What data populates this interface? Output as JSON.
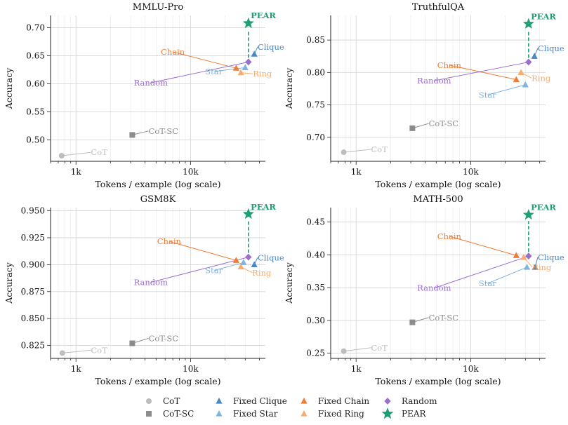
{
  "colors": {
    "CoT": "#bdbdbd",
    "CoT-SC": "#8c8c8c",
    "Fixed Clique": "#4a86c8",
    "Fixed Star": "#7db3e0",
    "Fixed Chain": "#ef7d35",
    "Fixed Ring": "#f6ad72",
    "Random": "#9b6fcc",
    "PEAR": "#1f9e74"
  },
  "chart_data": [
    {
      "type": "scatter",
      "title": "MMLU-Pro",
      "xlabel": "Tokens / example (log scale)",
      "ylabel": "Accuracy",
      "xscale": "log",
      "xlim": [
        600,
        45000
      ],
      "ylim": [
        0.462,
        0.722
      ],
      "yticks": [
        0.5,
        0.55,
        0.6,
        0.65,
        0.7
      ],
      "ytick_labels": [
        "0.50",
        "0.55",
        "0.60",
        "0.65",
        "0.70"
      ],
      "xticks": [
        1000,
        10000
      ],
      "xtick_labels": [
        "1k",
        "10k"
      ],
      "grid": true,
      "points": [
        {
          "name": "CoT",
          "x": 750,
          "y": 0.472,
          "marker": "circle",
          "label": "CoT",
          "lx": 1350,
          "ly": 0.473
        },
        {
          "name": "CoT-SC",
          "x": 3100,
          "y": 0.509,
          "marker": "square",
          "label": "CoT-SC",
          "lx": 4300,
          "ly": 0.511
        },
        {
          "name": "Fixed Chain",
          "x": 25000,
          "y": 0.628,
          "marker": "triangle",
          "label": "Chain",
          "lx": 7000,
          "ly": 0.652
        },
        {
          "name": "Fixed Ring",
          "x": 27500,
          "y": 0.62,
          "marker": "triangle",
          "label": "Ring",
          "lx": 35000,
          "ly": 0.613
        },
        {
          "name": "Fixed Star",
          "x": 30000,
          "y": 0.629,
          "marker": "triangle",
          "label": "Star",
          "lx": 16000,
          "ly": 0.617
        },
        {
          "name": "Random",
          "x": 32000,
          "y": 0.639,
          "marker": "diamond",
          "label": "Random",
          "lx": 4500,
          "ly": 0.597
        },
        {
          "name": "Fixed Clique",
          "x": 36000,
          "y": 0.653,
          "marker": "triangle",
          "label": "Clique",
          "lx": 38500,
          "ly": 0.661
        },
        {
          "name": "PEAR",
          "x": 32000,
          "y": 0.708,
          "marker": "star",
          "label": "PEAR",
          "lx": 33500,
          "ly": 0.717
        }
      ],
      "pear_from_y": 0.639
    },
    {
      "type": "scatter",
      "title": "TruthfulQA",
      "xlabel": "Tokens / example (log scale)",
      "ylabel": "Accuracy",
      "xscale": "log",
      "xlim": [
        600,
        45000
      ],
      "ylim": [
        0.663,
        0.888
      ],
      "yticks": [
        0.7,
        0.75,
        0.8,
        0.85
      ],
      "ytick_labels": [
        "0.70",
        "0.75",
        "0.80",
        "0.85"
      ],
      "xticks": [
        1000,
        10000
      ],
      "xtick_labels": [
        "1k",
        "10k"
      ],
      "grid": true,
      "points": [
        {
          "name": "CoT",
          "x": 780,
          "y": 0.677,
          "marker": "circle",
          "label": "CoT",
          "lx": 1350,
          "ly": 0.677
        },
        {
          "name": "CoT-SC",
          "x": 3100,
          "y": 0.714,
          "marker": "square",
          "label": "CoT-SC",
          "lx": 4300,
          "ly": 0.717
        },
        {
          "name": "Fixed Chain",
          "x": 25000,
          "y": 0.789,
          "marker": "triangle",
          "label": "Chain",
          "lx": 6500,
          "ly": 0.807
        },
        {
          "name": "Fixed Ring",
          "x": 27500,
          "y": 0.8,
          "marker": "triangle",
          "label": "Ring",
          "lx": 34000,
          "ly": 0.787
        },
        {
          "name": "Fixed Star",
          "x": 30000,
          "y": 0.781,
          "marker": "triangle",
          "label": "Star",
          "lx": 14000,
          "ly": 0.761
        },
        {
          "name": "Random",
          "x": 32000,
          "y": 0.816,
          "marker": "diamond",
          "label": "Random",
          "lx": 4800,
          "ly": 0.783
        },
        {
          "name": "Fixed Clique",
          "x": 36000,
          "y": 0.825,
          "marker": "triangle",
          "label": "Clique",
          "lx": 38500,
          "ly": 0.833
        },
        {
          "name": "PEAR",
          "x": 32000,
          "y": 0.875,
          "marker": "star",
          "label": "PEAR",
          "lx": 33500,
          "ly": 0.882
        }
      ],
      "pear_from_y": 0.816
    },
    {
      "type": "scatter",
      "title": "GSM8K",
      "xlabel": "Tokens / example (log scale)",
      "ylabel": "Accuracy",
      "xscale": "log",
      "xlim": [
        600,
        45000
      ],
      "ylim": [
        0.813,
        0.953
      ],
      "yticks": [
        0.825,
        0.85,
        0.875,
        0.9,
        0.925,
        0.95
      ],
      "ytick_labels": [
        "0.825",
        "0.850",
        "0.875",
        "0.900",
        "0.925",
        "0.950"
      ],
      "xticks": [
        1000,
        10000
      ],
      "xtick_labels": [
        "1k",
        "10k"
      ],
      "grid": true,
      "points": [
        {
          "name": "CoT",
          "x": 760,
          "y": 0.818,
          "marker": "circle",
          "label": "CoT",
          "lx": 1350,
          "ly": 0.818
        },
        {
          "name": "CoT-SC",
          "x": 3100,
          "y": 0.827,
          "marker": "square",
          "label": "CoT-SC",
          "lx": 4300,
          "ly": 0.829
        },
        {
          "name": "Fixed Chain",
          "x": 25000,
          "y": 0.904,
          "marker": "triangle",
          "label": "Chain",
          "lx": 6500,
          "ly": 0.919
        },
        {
          "name": "Fixed Ring",
          "x": 27500,
          "y": 0.898,
          "marker": "triangle",
          "label": "Ring",
          "lx": 34500,
          "ly": 0.89
        },
        {
          "name": "Fixed Star",
          "x": 29000,
          "y": 0.902,
          "marker": "triangle",
          "label": "Star",
          "lx": 16000,
          "ly": 0.892
        },
        {
          "name": "Random",
          "x": 32000,
          "y": 0.907,
          "marker": "diamond",
          "label": "Random",
          "lx": 4500,
          "ly": 0.881
        },
        {
          "name": "Fixed Clique",
          "x": 36000,
          "y": 0.9,
          "marker": "triangle",
          "label": "Clique",
          "lx": 38500,
          "ly": 0.904
        },
        {
          "name": "PEAR",
          "x": 32000,
          "y": 0.947,
          "marker": "star",
          "label": "PEAR",
          "lx": 33500,
          "ly": 0.951
        }
      ],
      "pear_from_y": 0.907
    },
    {
      "type": "scatter",
      "title": "MATH-500",
      "xlabel": "Tokens / example (log scale)",
      "ylabel": "Accuracy",
      "xscale": "log",
      "xlim": [
        600,
        45000
      ],
      "ylim": [
        0.242,
        0.472
      ],
      "yticks": [
        0.25,
        0.3,
        0.35,
        0.4,
        0.45
      ],
      "ytick_labels": [
        "0.25",
        "0.30",
        "0.35",
        "0.40",
        "0.45"
      ],
      "xticks": [
        1000,
        10000
      ],
      "xtick_labels": [
        "1k",
        "10k"
      ],
      "grid": true,
      "points": [
        {
          "name": "CoT",
          "x": 780,
          "y": 0.253,
          "marker": "circle",
          "label": "CoT",
          "lx": 1350,
          "ly": 0.254
        },
        {
          "name": "CoT-SC",
          "x": 3100,
          "y": 0.297,
          "marker": "square",
          "label": "CoT-SC",
          "lx": 4300,
          "ly": 0.3
        },
        {
          "name": "Fixed Chain",
          "x": 25000,
          "y": 0.399,
          "marker": "triangle",
          "label": "Chain",
          "lx": 6500,
          "ly": 0.424
        },
        {
          "name": "Fixed Ring",
          "x": 29000,
          "y": 0.396,
          "marker": "triangle",
          "label": "Ring",
          "lx": 34500,
          "ly": 0.377
        },
        {
          "name": "Fixed Star",
          "x": 31000,
          "y": 0.381,
          "marker": "triangle",
          "label": "Star",
          "lx": 14000,
          "ly": 0.352
        },
        {
          "name": "Random",
          "x": 32000,
          "y": 0.398,
          "marker": "diamond",
          "label": "Random",
          "lx": 4800,
          "ly": 0.345
        },
        {
          "name": "Fixed Clique",
          "x": 36500,
          "y": 0.381,
          "marker": "triangle",
          "label": "Clique",
          "lx": 38500,
          "ly": 0.392
        },
        {
          "name": "PEAR",
          "x": 32000,
          "y": 0.461,
          "marker": "star",
          "label": "PEAR",
          "lx": 33500,
          "ly": 0.468
        }
      ],
      "pear_from_y": 0.398
    }
  ],
  "legend": {
    "position": "bottom",
    "items": [
      {
        "label": "CoT",
        "marker": "circle",
        "color": "#bdbdbd"
      },
      {
        "label": "CoT-SC",
        "marker": "square",
        "color": "#8c8c8c"
      },
      {
        "label": "Fixed Clique",
        "marker": "triangle",
        "color": "#4a86c8"
      },
      {
        "label": "Fixed Star",
        "marker": "triangle",
        "color": "#7db3e0"
      },
      {
        "label": "Fixed Chain",
        "marker": "triangle",
        "color": "#ef7d35"
      },
      {
        "label": "Fixed Ring",
        "marker": "triangle",
        "color": "#f6ad72"
      },
      {
        "label": "Random",
        "marker": "diamond",
        "color": "#9b6fcc"
      },
      {
        "label": "PEAR",
        "marker": "star",
        "color": "#1f9e74"
      }
    ]
  }
}
